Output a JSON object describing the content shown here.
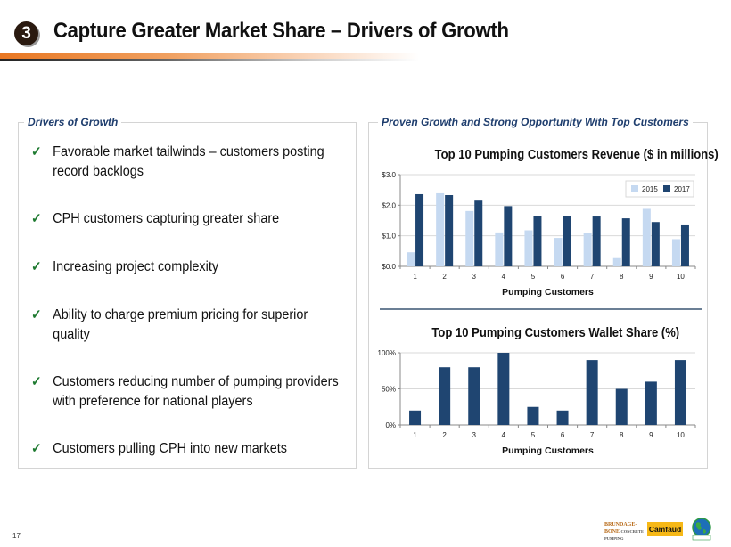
{
  "header": {
    "section_number": "3",
    "title": "Capture Greater Market Share – Drivers of Growth"
  },
  "left_panel": {
    "label": "Drivers of Growth",
    "check_icon": "check-icon",
    "bullets": [
      {
        "line1": "Favorable market tailwinds – customers posting",
        "line2": "record backlogs"
      },
      {
        "line1": "CPH customers capturing greater share",
        "line2": ""
      },
      {
        "line1": "Increasing project complexity",
        "line2": ""
      },
      {
        "line1": "Ability to charge premium pricing for superior",
        "line2": "quality"
      },
      {
        "line1": "Customers reducing number of pumping providers",
        "line2": "with preference for national players"
      },
      {
        "line1": "Customers pulling CPH into new markets",
        "line2": ""
      }
    ]
  },
  "right_panel": {
    "label": "Proven Growth and Strong Opportunity With Top Customers"
  },
  "colors": {
    "series_2015": "#c5d9f1",
    "series_2017": "#1f4571",
    "accent_orange": "#e87722",
    "label_blue": "#1f3e6e",
    "check_green": "#1e7a30"
  },
  "chart_data": [
    {
      "type": "bar",
      "title": "Top 10 Pumping Customers Revenue ($ in millions)",
      "xlabel": "Pumping Customers",
      "ylabel": "",
      "categories": [
        "1",
        "2",
        "3",
        "4",
        "5",
        "6",
        "7",
        "8",
        "9",
        "10"
      ],
      "series": [
        {
          "name": "2015",
          "values": [
            0.46,
            2.39,
            1.81,
            1.11,
            1.18,
            0.93,
            1.1,
            0.27,
            1.88,
            0.89
          ]
        },
        {
          "name": "2017",
          "values": [
            2.36,
            2.33,
            2.15,
            1.97,
            1.64,
            1.64,
            1.63,
            1.57,
            1.45,
            1.37
          ]
        }
      ],
      "yticks": [
        0,
        1,
        2,
        3
      ],
      "ytick_labels": [
        "$0.0",
        "$1.0",
        "$2.0",
        "$3.0"
      ],
      "ylim": [
        0,
        3
      ],
      "grid": true,
      "legend": "top-right"
    },
    {
      "type": "bar",
      "title": "Top 10 Pumping Customers Wallet Share (%)",
      "xlabel": "Pumping Customers",
      "ylabel": "",
      "categories": [
        "1",
        "2",
        "3",
        "4",
        "5",
        "6",
        "7",
        "8",
        "9",
        "10"
      ],
      "values": [
        20,
        80,
        80,
        100,
        25,
        20,
        90,
        50,
        60,
        90
      ],
      "yticks": [
        0,
        50,
        100
      ],
      "ytick_labels": [
        "0%",
        "50%",
        "100%"
      ],
      "ylim": [
        0,
        100
      ],
      "grid": true,
      "legend": "none"
    }
  ],
  "footer": {
    "page_number": "17",
    "logos": [
      {
        "name": "Brundage-Bone",
        "line1": "BRUNDAGE-",
        "line2": "BONE",
        "sub": "CONCRETE PUMPING"
      },
      {
        "name": "Camfaud",
        "text": "Camfaud"
      },
      {
        "name": "Eco-Pan",
        "text": "ECO-PAN"
      }
    ]
  }
}
